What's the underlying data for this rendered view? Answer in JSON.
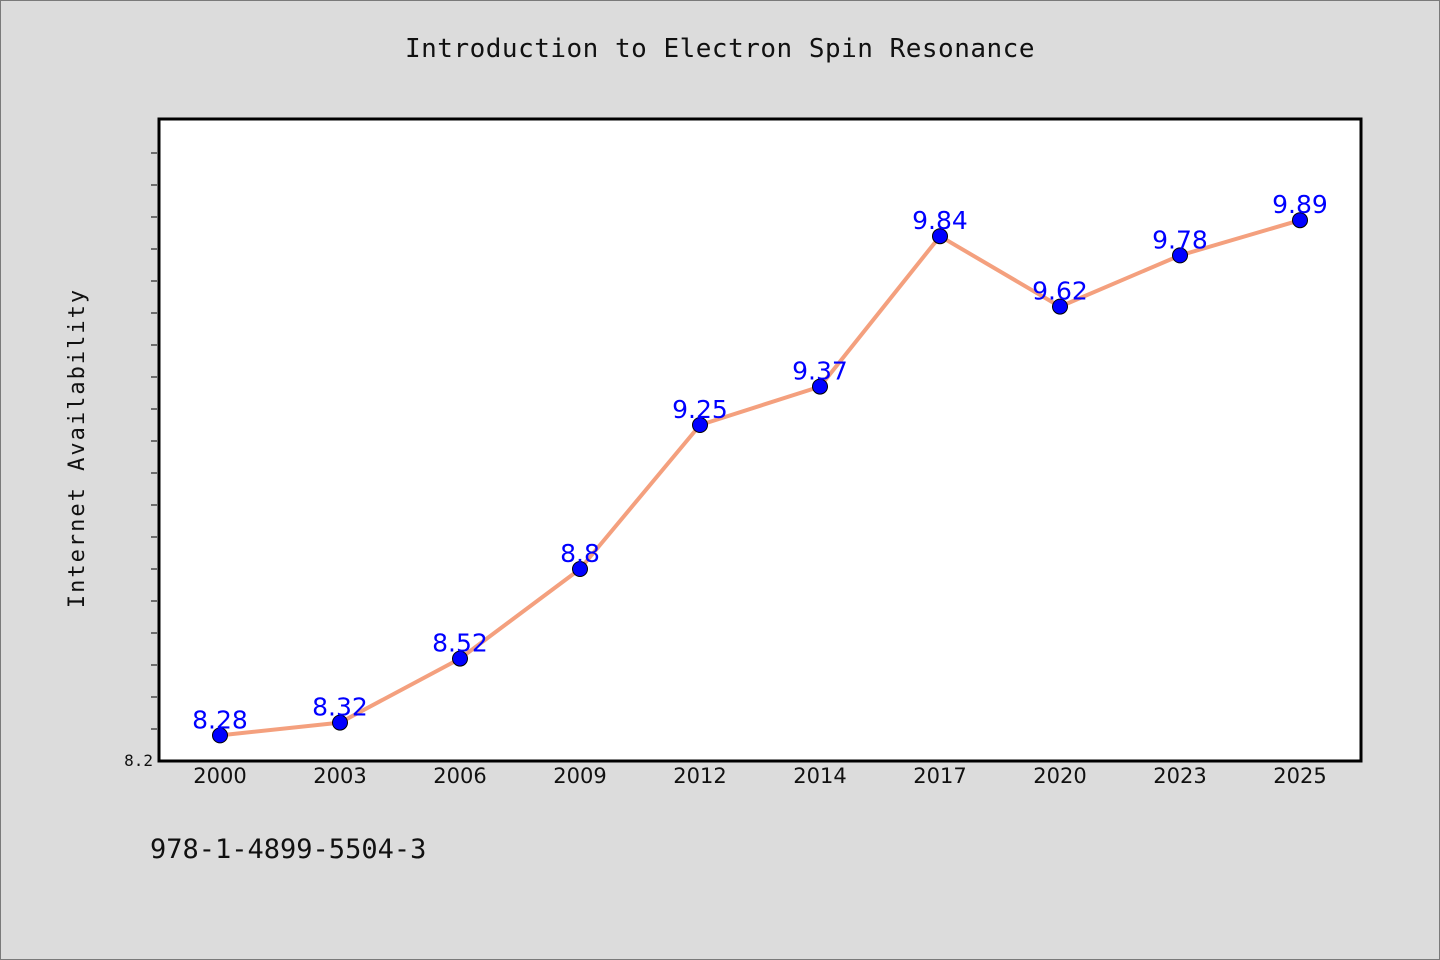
{
  "page": {
    "title": "Introduction to Electron Spin Resonance",
    "isbn": "978-1-4899-5504-3"
  },
  "colors": {
    "background": "#dcdcdc",
    "plot_background": "#ffffff",
    "line": "#f4a07e",
    "marker": "#0000ff",
    "data_label": "#0000ff"
  },
  "chart_data": {
    "type": "line",
    "title": "Introduction to Electron Spin Resonance",
    "xlabel": "",
    "ylabel": "Internet Availability",
    "categories": [
      "2000",
      "2003",
      "2006",
      "2009",
      "2012",
      "2014",
      "2017",
      "2020",
      "2023",
      "2025"
    ],
    "series": [
      {
        "values": [
          8.28,
          8.32,
          8.52,
          8.8,
          9.25,
          9.37,
          9.84,
          9.62,
          9.78,
          9.89
        ]
      }
    ],
    "data_labels": [
      "8.28",
      "8.32",
      "8.52",
      "8.8",
      "9.25",
      "9.37",
      "9.84",
      "9.62",
      "9.78",
      "9.89"
    ],
    "ytick_labels": [
      "8.2"
    ],
    "ylim": [
      8.2,
      10.2
    ],
    "grid": false,
    "legend": "none"
  }
}
